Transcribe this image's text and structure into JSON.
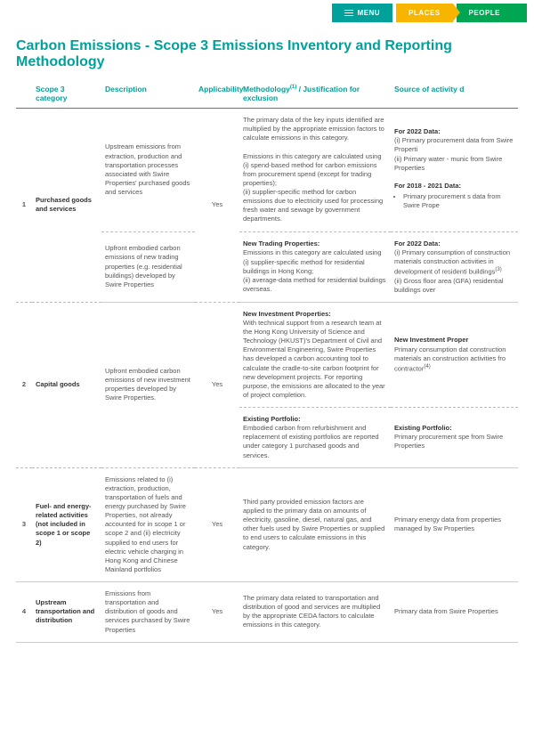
{
  "nav": {
    "menu": "MENU",
    "places": "PLACES",
    "people": "PEOPLE"
  },
  "title": "Carbon Emissions - Scope 3 Emissions Inventory and Reporting Methodology",
  "headers": {
    "col1": "",
    "col2": "Scope 3 category",
    "col3": "Description",
    "col4": "Applicability",
    "col5": "Methodology",
    "col5_sup": "(1)",
    "col5_rest": " / Justification for exclusion",
    "col6": "Source of activity d"
  },
  "rows": [
    {
      "num": "1",
      "cat": "Purchased goods and services",
      "subrows": [
        {
          "desc": "Upstream emissions from extraction, production and transportation processes associated with Swire Properties' purchased goods and services",
          "applic": "Yes",
          "meth": "The primary data of the key inputs identified are multiplied by the appropriate emission factors to calculate emissions in this category.<br><br>Emissions in this category are calculated using<br>(i) spend-based method for carbon emissions from procurement spend (except for trading properties);<br>(ii) supplier-specific method for carbon emissions due to electricity used for processing fresh water and sewage by government departments.",
          "src": "<b>For 2022 Data:</b><br>(i) Primary procurement data from Swire Properti<br>(ii) Primary water - munic from Swire Properties<br><br><b>For 2018 - 2021 Data:</b><ul><li>Primary procurement s data from Swire Prope</li></ul>"
        },
        {
          "desc": "Upfront embodied carbon emissions of new trading properties (e.g. residential buildings) developed by Swire Properties",
          "applic": "",
          "meth": "<b>New Trading Properties:</b><br>Emissions in this category are calculated using<br>(i) supplier-specific method for residential buildings in Hong Kong;<br>(ii) average-data method for residential buildings overseas.",
          "src": "<b>For 2022 Data:</b><br>(i) Primary consumption of construction materials construction activities in development of residenti buildings<sup>(3)</sup><br>(ii) Gross floor area (GFA) residential buildings over"
        }
      ]
    },
    {
      "num": "2",
      "cat": "Capital goods",
      "subrows": [
        {
          "desc": "Upfront embodied carbon emissions of new investment properties developed by Swire Properties.",
          "applic": "Yes",
          "meth": "<b>New Investment Properties:</b><br>With technical support from a research team at the Hong Kong University of Science and Technology (HKUST)'s Department of Civil and Environmental Engineering, Swire Properties has developed a carbon accounting tool to calculate the cradle-to-site carbon footprint for new development projects. For reporting purpose, the emissions are allocated to the year of project completion.",
          "src": "<b>New Investment Proper</b><br>Primary consumption dat construction materials an construction activities fro contractor<sup>(4)</sup>"
        },
        {
          "desc": "",
          "applic": "",
          "meth": "<b>Existing Portfolio:</b><br>Embodied carbon from refurbishment and replacement of existing portfolios are reported under category 1 purchased goods and services.",
          "src": "<b>Existing Portfolio:</b><br>Primary procurement spe from Swire Properties"
        }
      ]
    },
    {
      "num": "3",
      "cat": "Fuel- and energy-related activities (not included in scope 1 or scope 2)",
      "subrows": [
        {
          "desc": "Emissions related to (i) extraction, production, transportation of fuels and energy purchased by Swire Properties, not already accounted for in scope 1 or scope 2 and (ii) electricity supplied to end users for electric vehicle charging in Hong Kong and Chinese Mainland portfolios",
          "applic": "Yes",
          "meth": "Third party provided emission factors are applied to the primary data on amounts of electricity, gasoline, diesel, natural gas, and other fuels used by Swire Properties or supplied to end users to calculate emissions in this category.",
          "src": "Primary energy data from properties managed by Sw Properties"
        }
      ]
    },
    {
      "num": "4",
      "cat": "Upstream transportation and distribution",
      "subrows": [
        {
          "desc": "Emissions from transportation and distribution of goods and services purchased by Swire Properties",
          "applic": "Yes",
          "meth": "The primary data related to transportation and distribution of good and services are multiplied by the appropriate CEDA factors to calculate emissions in this category.",
          "src": "Primary data from Swire Properties"
        }
      ]
    }
  ]
}
